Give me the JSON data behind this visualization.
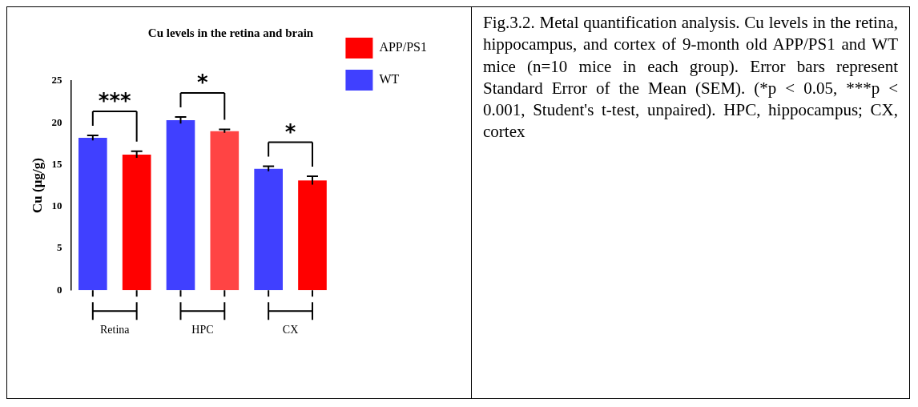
{
  "chart_data": {
    "type": "bar",
    "title": "Cu levels in the retina and brain",
    "ylabel": "Cu (µg/g)",
    "categories": [
      "Retina",
      "HPC",
      "CX"
    ],
    "series": [
      {
        "name": "WT",
        "color": "#4040ff",
        "values": [
          18.2,
          20.3,
          14.5
        ],
        "errors": [
          0.3,
          0.4,
          0.3
        ]
      },
      {
        "name": "APP/PS1",
        "color": "#ff0000",
        "colors": [
          "#ff0000",
          "#ff4444",
          "#ff0000"
        ],
        "values": [
          16.2,
          19.0,
          13.1
        ],
        "errors": [
          0.4,
          0.2,
          0.5
        ]
      }
    ],
    "ylim": [
      0,
      25
    ],
    "yticks": [
      0,
      5,
      10,
      15,
      20,
      25
    ],
    "grid": false,
    "legend": "top right",
    "annotations": [
      "***",
      "*",
      "*",
      "Fig.3.2. Metal quantification analysis. Cu levels in the retina, hippocampus, and cortex of 9-month old APP/PS1 and WT mice (n=10 mice in each group). Error bars represent Standard Error of the Mean (SEM). (*p < 0.05, ***p < 0.001, Student's t-test, unpaired). HPC, hippocampus; CX, cortex"
    ]
  }
}
